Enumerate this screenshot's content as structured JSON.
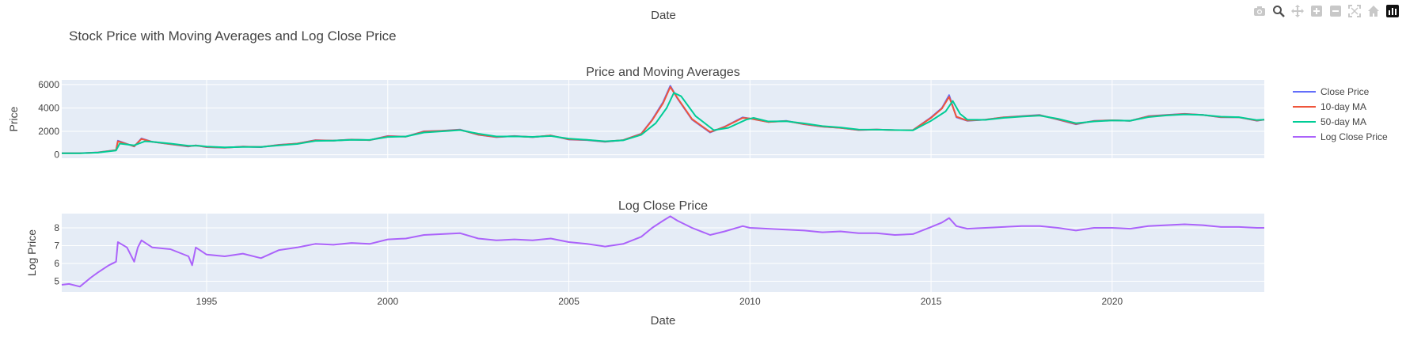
{
  "title": "Stock Price with Moving Averages and Log Close Price",
  "top_xaxis_label": "Date",
  "colors": {
    "close": "#636efa",
    "ma10": "#ef553b",
    "ma50": "#00cc96",
    "log": "#ab63fa",
    "plot_bg": "#e5ecf6",
    "text": "#444444"
  },
  "modebar": {
    "icons": [
      "camera-icon",
      "zoom-icon",
      "pan-icon",
      "zoom-in-icon",
      "zoom-out-icon",
      "autoscale-icon",
      "home-icon",
      "plotly-logo-icon"
    ]
  },
  "legend": {
    "placement": "right",
    "items": [
      "Close Price",
      "10-day MA",
      "50-day MA",
      "Log Close Price"
    ]
  },
  "chart_data": [
    {
      "type": "line",
      "title": "Price and Moving Averages",
      "xlabel": "",
      "ylabel": "Price",
      "xlim": [
        1991.0,
        2024.2
      ],
      "ylim": [
        -300,
        6400
      ],
      "yticks": [
        0,
        2000,
        4000,
        6000
      ],
      "grid": true,
      "series": [
        {
          "name": "Close Price",
          "x": [
            1991.0,
            1991.5,
            1992.0,
            1992.5,
            1992.55,
            1993.0,
            1993.2,
            1993.5,
            1994.0,
            1994.5,
            1994.7,
            1995.0,
            1995.5,
            1996.0,
            1996.5,
            1997.0,
            1997.5,
            1998.0,
            1998.5,
            1999.0,
            1999.5,
            2000.0,
            2000.5,
            2001.0,
            2001.5,
            2002.0,
            2002.5,
            2003.0,
            2003.5,
            2004.0,
            2004.5,
            2005.0,
            2005.5,
            2006.0,
            2006.5,
            2007.0,
            2007.3,
            2007.6,
            2007.8,
            2008.0,
            2008.4,
            2008.9,
            2009.3,
            2009.8,
            2010.0,
            2010.5,
            2011.0,
            2011.5,
            2012.0,
            2012.5,
            2013.0,
            2013.5,
            2014.0,
            2014.5,
            2015.0,
            2015.3,
            2015.5,
            2015.7,
            2016.0,
            2016.5,
            2017.0,
            2017.5,
            2018.0,
            2018.5,
            2019.0,
            2019.5,
            2020.0,
            2020.5,
            2021.0,
            2021.5,
            2022.0,
            2022.5,
            2023.0,
            2023.5,
            2024.0,
            2024.2
          ],
          "values": [
            125,
            130,
            200,
            400,
            1200,
            700,
            1400,
            1100,
            900,
            700,
            800,
            650,
            600,
            700,
            650,
            850,
            950,
            1250,
            1200,
            1300,
            1250,
            1600,
            1550,
            2000,
            2050,
            2150,
            1700,
            1500,
            1600,
            1500,
            1650,
            1300,
            1250,
            1100,
            1250,
            1800,
            3000,
            4500,
            5900,
            4800,
            3000,
            1900,
            2400,
            3200,
            3100,
            2800,
            2900,
            2600,
            2400,
            2300,
            2100,
            2150,
            2100,
            2100,
            3200,
            4000,
            5100,
            3200,
            2900,
            3000,
            3200,
            3300,
            3400,
            3000,
            2600,
            2900,
            2950,
            2900,
            3300,
            3400,
            3500,
            3400,
            3200,
            3200,
            2900,
            3000
          ]
        },
        {
          "name": "10-day MA",
          "x": [
            1991.0,
            1991.5,
            1992.0,
            1992.5,
            1992.55,
            1993.0,
            1993.2,
            1993.5,
            1994.0,
            1994.5,
            1994.7,
            1995.0,
            1995.5,
            1996.0,
            1996.5,
            1997.0,
            1997.5,
            1998.0,
            1998.5,
            1999.0,
            1999.5,
            2000.0,
            2000.5,
            2001.0,
            2001.5,
            2002.0,
            2002.5,
            2003.0,
            2003.5,
            2004.0,
            2004.5,
            2005.0,
            2005.5,
            2006.0,
            2006.5,
            2007.0,
            2007.3,
            2007.6,
            2007.8,
            2008.0,
            2008.4,
            2008.9,
            2009.3,
            2009.8,
            2010.0,
            2010.5,
            2011.0,
            2011.5,
            2012.0,
            2012.5,
            2013.0,
            2013.5,
            2014.0,
            2014.5,
            2015.0,
            2015.3,
            2015.5,
            2015.7,
            2016.0,
            2016.5,
            2017.0,
            2017.5,
            2018.0,
            2018.5,
            2019.0,
            2019.5,
            2020.0,
            2020.5,
            2021.0,
            2021.5,
            2022.0,
            2022.5,
            2023.0,
            2023.5,
            2024.0,
            2024.2
          ],
          "values": [
            125,
            128,
            195,
            390,
            1150,
            720,
            1350,
            1100,
            910,
            720,
            790,
            660,
            610,
            690,
            660,
            840,
            950,
            1230,
            1200,
            1290,
            1250,
            1580,
            1550,
            1980,
            2040,
            2130,
            1720,
            1520,
            1590,
            1510,
            1640,
            1320,
            1260,
            1120,
            1250,
            1780,
            2950,
            4400,
            5800,
            4850,
            3050,
            1950,
            2380,
            3150,
            3100,
            2800,
            2880,
            2620,
            2410,
            2300,
            2120,
            2150,
            2100,
            2100,
            3150,
            3950,
            4950,
            3250,
            2920,
            3000,
            3190,
            3290,
            3380,
            3020,
            2630,
            2880,
            2950,
            2900,
            3280,
            3390,
            3480,
            3400,
            3220,
            3200,
            2920,
            3000
          ]
        },
        {
          "name": "50-day MA",
          "x": [
            1991.0,
            1991.5,
            1992.0,
            1992.5,
            1992.6,
            1993.0,
            1993.3,
            1993.5,
            1994.0,
            1994.5,
            1994.8,
            1995.0,
            1995.5,
            1996.0,
            1996.5,
            1997.0,
            1997.5,
            1998.0,
            1998.5,
            1999.0,
            1999.5,
            2000.0,
            2000.5,
            2001.0,
            2001.5,
            2002.0,
            2002.5,
            2003.0,
            2003.5,
            2004.0,
            2004.5,
            2005.0,
            2005.5,
            2006.0,
            2006.5,
            2007.0,
            2007.4,
            2007.7,
            2007.9,
            2008.1,
            2008.5,
            2009.0,
            2009.4,
            2009.9,
            2010.1,
            2010.5,
            2011.0,
            2011.5,
            2012.0,
            2012.5,
            2013.0,
            2013.5,
            2014.0,
            2014.5,
            2015.0,
            2015.4,
            2015.6,
            2015.8,
            2016.0,
            2016.5,
            2017.0,
            2017.5,
            2018.0,
            2018.5,
            2019.0,
            2019.5,
            2020.0,
            2020.5,
            2021.0,
            2021.5,
            2022.0,
            2022.5,
            2023.0,
            2023.5,
            2024.0,
            2024.2
          ],
          "values": [
            125,
            127,
            180,
            360,
            950,
            800,
            1150,
            1100,
            950,
            760,
            760,
            700,
            630,
            670,
            670,
            800,
            920,
            1180,
            1200,
            1270,
            1260,
            1520,
            1560,
            1900,
            2000,
            2100,
            1800,
            1560,
            1570,
            1530,
            1600,
            1380,
            1280,
            1150,
            1230,
            1700,
            2700,
            4000,
            5300,
            5000,
            3300,
            2100,
            2300,
            3000,
            3150,
            2850,
            2860,
            2680,
            2450,
            2330,
            2160,
            2140,
            2110,
            2090,
            2900,
            3700,
            4600,
            3500,
            3000,
            2980,
            3150,
            3260,
            3350,
            3080,
            2700,
            2850,
            2930,
            2910,
            3220,
            3360,
            3450,
            3400,
            3250,
            3210,
            2960,
            3000
          ]
        }
      ]
    },
    {
      "type": "line",
      "title": "Log Close Price",
      "xlabel": "Date",
      "ylabel": "Log Price",
      "xlim": [
        1991.0,
        2024.2
      ],
      "ylim": [
        4.4,
        8.8
      ],
      "yticks": [
        5,
        6,
        7,
        8
      ],
      "xticks": [
        1995,
        2000,
        2005,
        2010,
        2015,
        2020
      ],
      "grid": true,
      "series": [
        {
          "name": "Log Close Price",
          "x": [
            1991.0,
            1991.2,
            1991.5,
            1991.8,
            1992.0,
            1992.3,
            1992.5,
            1992.55,
            1992.8,
            1993.0,
            1993.1,
            1993.2,
            1993.5,
            1994.0,
            1994.5,
            1994.6,
            1994.7,
            1995.0,
            1995.5,
            1996.0,
            1996.5,
            1997.0,
            1997.5,
            1998.0,
            1998.5,
            1999.0,
            1999.5,
            2000.0,
            2000.5,
            2001.0,
            2001.5,
            2002.0,
            2002.5,
            2003.0,
            2003.5,
            2004.0,
            2004.5,
            2005.0,
            2005.5,
            2006.0,
            2006.5,
            2007.0,
            2007.3,
            2007.6,
            2007.8,
            2008.0,
            2008.4,
            2008.9,
            2009.3,
            2009.8,
            2010.0,
            2010.5,
            2011.0,
            2011.5,
            2012.0,
            2012.5,
            2013.0,
            2013.5,
            2014.0,
            2014.5,
            2015.0,
            2015.3,
            2015.5,
            2015.7,
            2016.0,
            2016.5,
            2017.0,
            2017.5,
            2018.0,
            2018.5,
            2019.0,
            2019.5,
            2020.0,
            2020.5,
            2021.0,
            2021.5,
            2022.0,
            2022.5,
            2023.0,
            2023.5,
            2024.0,
            2024.2
          ],
          "values": [
            4.8,
            4.85,
            4.7,
            5.2,
            5.5,
            5.9,
            6.1,
            7.2,
            6.9,
            6.1,
            6.9,
            7.3,
            6.9,
            6.8,
            6.4,
            5.9,
            6.9,
            6.5,
            6.4,
            6.55,
            6.3,
            6.75,
            6.9,
            7.1,
            7.05,
            7.15,
            7.1,
            7.35,
            7.4,
            7.6,
            7.65,
            7.7,
            7.4,
            7.3,
            7.35,
            7.3,
            7.4,
            7.2,
            7.1,
            6.95,
            7.1,
            7.5,
            8.0,
            8.4,
            8.65,
            8.4,
            8.0,
            7.6,
            7.8,
            8.1,
            8.0,
            7.95,
            7.9,
            7.85,
            7.75,
            7.8,
            7.7,
            7.7,
            7.6,
            7.65,
            8.05,
            8.3,
            8.55,
            8.1,
            7.95,
            8.0,
            8.05,
            8.1,
            8.1,
            8.0,
            7.85,
            8.0,
            8.0,
            7.95,
            8.1,
            8.15,
            8.2,
            8.15,
            8.05,
            8.05,
            8.0,
            8.0
          ]
        }
      ]
    }
  ]
}
